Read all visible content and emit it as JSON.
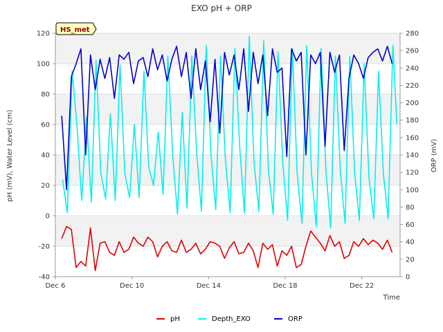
{
  "chart_data": {
    "type": "line",
    "title": "EXO pH + ORP",
    "badge": "HS_met",
    "xlabel": "Time",
    "ylabel_left": "pH (mV), Water Level (cm)",
    "ylabel_right": "ORP (mV)",
    "xlim": [
      "2023-12-06",
      "2023-12-24"
    ],
    "ylim_left": [
      -40,
      120
    ],
    "ylim_right": [
      0,
      280
    ],
    "x_ticks": [
      {
        "date": "2023-12-06",
        "label": "Dec 6"
      },
      {
        "date": "2023-12-10",
        "label": "Dec 10"
      },
      {
        "date": "2023-12-14",
        "label": "Dec 14"
      },
      {
        "date": "2023-12-18",
        "label": "Dec 18"
      },
      {
        "date": "2023-12-22",
        "label": "Dec 22"
      }
    ],
    "y_ticks_left": [
      -40,
      -20,
      0,
      20,
      40,
      60,
      80,
      100,
      120
    ],
    "y_ticks_right": [
      0,
      20,
      40,
      60,
      80,
      100,
      120,
      140,
      160,
      180,
      200,
      220,
      240,
      260,
      280
    ],
    "grid": true,
    "legend_position": "bottom",
    "series": [
      {
        "name": "pH",
        "axis": "left",
        "color": "#dd0000",
        "x": [
          "2023-12-06 08:00",
          "2023-12-06 14:00",
          "2023-12-06 20:00",
          "2023-12-07 02:00",
          "2023-12-07 08:00",
          "2023-12-07 14:00",
          "2023-12-07 20:00",
          "2023-12-08 02:00",
          "2023-12-08 08:00",
          "2023-12-08 14:00",
          "2023-12-08 20:00",
          "2023-12-09 02:00",
          "2023-12-09 08:00",
          "2023-12-09 14:00",
          "2023-12-09 20:00",
          "2023-12-10 02:00",
          "2023-12-10 08:00",
          "2023-12-10 14:00",
          "2023-12-10 20:00",
          "2023-12-11 02:00",
          "2023-12-11 08:00",
          "2023-12-11 14:00",
          "2023-12-11 20:00",
          "2023-12-12 02:00",
          "2023-12-12 08:00",
          "2023-12-12 14:00",
          "2023-12-12 20:00",
          "2023-12-13 02:00",
          "2023-12-13 08:00",
          "2023-12-13 14:00",
          "2023-12-13 20:00",
          "2023-12-14 02:00",
          "2023-12-14 08:00",
          "2023-12-14 14:00",
          "2023-12-14 20:00",
          "2023-12-15 02:00",
          "2023-12-15 08:00",
          "2023-12-15 14:00",
          "2023-12-15 20:00",
          "2023-12-16 02:00",
          "2023-12-16 08:00",
          "2023-12-16 14:00",
          "2023-12-16 20:00",
          "2023-12-17 02:00",
          "2023-12-17 08:00",
          "2023-12-17 14:00",
          "2023-12-17 20:00",
          "2023-12-18 02:00",
          "2023-12-18 08:00",
          "2023-12-18 14:00",
          "2023-12-18 20:00",
          "2023-12-19 02:00",
          "2023-12-19 08:00",
          "2023-12-19 14:00",
          "2023-12-19 20:00",
          "2023-12-20 02:00",
          "2023-12-20 08:00",
          "2023-12-20 14:00",
          "2023-12-20 20:00",
          "2023-12-21 02:00",
          "2023-12-21 08:00",
          "2023-12-21 14:00",
          "2023-12-21 20:00",
          "2023-12-22 02:00",
          "2023-12-22 08:00",
          "2023-12-22 14:00",
          "2023-12-22 20:00",
          "2023-12-23 02:00",
          "2023-12-23 08:00",
          "2023-12-23 14:00"
        ],
        "values": [
          -15,
          -7,
          -9,
          -34,
          -30,
          -33,
          -8,
          -36,
          -18,
          -17,
          -24,
          -26,
          -17,
          -24,
          -22,
          -14,
          -18,
          -20,
          -14,
          -17,
          -27,
          -20,
          -17,
          -23,
          -24,
          -16,
          -24,
          -22,
          -18,
          -25,
          -22,
          -17,
          -18,
          -20,
          -28,
          -21,
          -17,
          -25,
          -24,
          -18,
          -23,
          -34,
          -18,
          -22,
          -19,
          -33,
          -23,
          -26,
          -20,
          -34,
          -32,
          -20,
          -10,
          -14,
          -18,
          -23,
          -13,
          -20,
          -17,
          -28,
          -26,
          -17,
          -20,
          -15,
          -19,
          -16,
          -18,
          -22,
          -16,
          -24
        ]
      },
      {
        "name": "Depth_EXO",
        "axis": "left",
        "color": "#00f0f0",
        "x": [
          "2023-12-06 09:00",
          "2023-12-06 15:00",
          "2023-12-06 21:00",
          "2023-12-07 03:00",
          "2023-12-07 09:00",
          "2023-12-07 15:00",
          "2023-12-07 21:00",
          "2023-12-08 03:00",
          "2023-12-08 09:00",
          "2023-12-08 15:00",
          "2023-12-08 21:00",
          "2023-12-09 03:00",
          "2023-12-09 09:00",
          "2023-12-09 15:00",
          "2023-12-09 21:00",
          "2023-12-10 03:00",
          "2023-12-10 09:00",
          "2023-12-10 15:00",
          "2023-12-10 21:00",
          "2023-12-11 03:00",
          "2023-12-11 09:00",
          "2023-12-11 15:00",
          "2023-12-11 21:00",
          "2023-12-12 03:00",
          "2023-12-12 09:00",
          "2023-12-12 15:00",
          "2023-12-12 21:00",
          "2023-12-13 03:00",
          "2023-12-13 09:00",
          "2023-12-13 15:00",
          "2023-12-13 21:00",
          "2023-12-14 03:00",
          "2023-12-14 09:00",
          "2023-12-14 15:00",
          "2023-12-14 21:00",
          "2023-12-15 03:00",
          "2023-12-15 09:00",
          "2023-12-15 15:00",
          "2023-12-15 21:00",
          "2023-12-16 03:00",
          "2023-12-16 09:00",
          "2023-12-16 15:00",
          "2023-12-16 21:00",
          "2023-12-17 03:00",
          "2023-12-17 09:00",
          "2023-12-17 15:00",
          "2023-12-17 21:00",
          "2023-12-18 03:00",
          "2023-12-18 09:00",
          "2023-12-18 15:00",
          "2023-12-18 21:00",
          "2023-12-19 03:00",
          "2023-12-19 09:00",
          "2023-12-19 15:00",
          "2023-12-19 21:00",
          "2023-12-20 03:00",
          "2023-12-20 09:00",
          "2023-12-20 15:00",
          "2023-12-20 21:00",
          "2023-12-21 03:00",
          "2023-12-21 09:00",
          "2023-12-21 15:00",
          "2023-12-21 21:00",
          "2023-12-22 03:00",
          "2023-12-22 09:00",
          "2023-12-22 15:00",
          "2023-12-22 21:00",
          "2023-12-23 03:00",
          "2023-12-23 09:00",
          "2023-12-23 15:00",
          "2023-12-23 20:00"
        ],
        "values": [
          24,
          2,
          95,
          60,
          10,
          65,
          9,
          102,
          28,
          11,
          67,
          10,
          99,
          28,
          12,
          60,
          12,
          95,
          32,
          20,
          55,
          14,
          105,
          40,
          1,
          68,
          5,
          105,
          42,
          3,
          112,
          40,
          4,
          105,
          38,
          2,
          110,
          45,
          2,
          118,
          35,
          3,
          115,
          30,
          1,
          108,
          35,
          -3,
          110,
          28,
          -5,
          112,
          28,
          -7,
          110,
          30,
          -8,
          105,
          30,
          -5,
          105,
          28,
          -3,
          100,
          25,
          -2,
          95,
          28,
          -2,
          112,
          60
        ]
      },
      {
        "name": "ORP",
        "axis": "right",
        "color": "#0000cc",
        "x": [
          "2023-12-06 08:00",
          "2023-12-06 14:00",
          "2023-12-06 20:00",
          "2023-12-07 02:00",
          "2023-12-07 08:00",
          "2023-12-07 14:00",
          "2023-12-07 20:00",
          "2023-12-08 02:00",
          "2023-12-08 08:00",
          "2023-12-08 14:00",
          "2023-12-08 20:00",
          "2023-12-09 02:00",
          "2023-12-09 08:00",
          "2023-12-09 14:00",
          "2023-12-09 20:00",
          "2023-12-10 02:00",
          "2023-12-10 08:00",
          "2023-12-10 14:00",
          "2023-12-10 20:00",
          "2023-12-11 02:00",
          "2023-12-11 08:00",
          "2023-12-11 14:00",
          "2023-12-11 20:00",
          "2023-12-12 02:00",
          "2023-12-12 08:00",
          "2023-12-12 14:00",
          "2023-12-12 20:00",
          "2023-12-13 02:00",
          "2023-12-13 08:00",
          "2023-12-13 14:00",
          "2023-12-13 20:00",
          "2023-12-14 02:00",
          "2023-12-14 08:00",
          "2023-12-14 14:00",
          "2023-12-14 20:00",
          "2023-12-15 02:00",
          "2023-12-15 08:00",
          "2023-12-15 14:00",
          "2023-12-15 20:00",
          "2023-12-16 02:00",
          "2023-12-16 08:00",
          "2023-12-16 14:00",
          "2023-12-16 20:00",
          "2023-12-17 02:00",
          "2023-12-17 08:00",
          "2023-12-17 14:00",
          "2023-12-17 20:00",
          "2023-12-18 02:00",
          "2023-12-18 08:00",
          "2023-12-18 14:00",
          "2023-12-18 20:00",
          "2023-12-19 02:00",
          "2023-12-19 08:00",
          "2023-12-19 14:00",
          "2023-12-19 20:00",
          "2023-12-20 02:00",
          "2023-12-20 08:00",
          "2023-12-20 14:00",
          "2023-12-20 20:00",
          "2023-12-21 02:00",
          "2023-12-21 08:00",
          "2023-12-21 14:00",
          "2023-12-21 20:00",
          "2023-12-22 02:00",
          "2023-12-22 08:00",
          "2023-12-22 14:00",
          "2023-12-22 20:00",
          "2023-12-23 02:00",
          "2023-12-23 08:00",
          "2023-12-23 14:00"
        ],
        "values": [
          185,
          100,
          230,
          245,
          262,
          140,
          255,
          215,
          250,
          228,
          252,
          205,
          255,
          250,
          258,
          222,
          248,
          252,
          230,
          262,
          238,
          255,
          225,
          250,
          265,
          230,
          258,
          205,
          262,
          215,
          248,
          178,
          250,
          165,
          258,
          232,
          255,
          215,
          262,
          190,
          258,
          222,
          255,
          185,
          262,
          235,
          240,
          138,
          262,
          248,
          258,
          140,
          255,
          245,
          258,
          150,
          258,
          235,
          255,
          145,
          228,
          255,
          245,
          228,
          252,
          258,
          262,
          248,
          265,
          245
        ]
      }
    ]
  }
}
